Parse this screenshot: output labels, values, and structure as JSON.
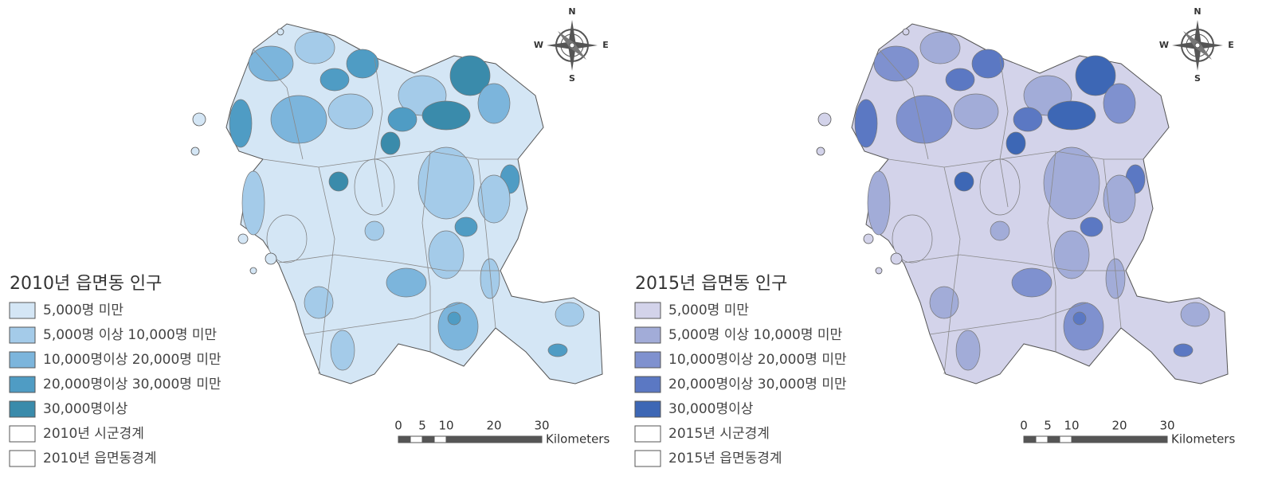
{
  "maps": [
    {
      "legend": {
        "title": "2010년 읍면동 인구",
        "items": [
          {
            "label": "5,000명 미만",
            "color": "#d4e6f5"
          },
          {
            "label": "5,000명 이상 10,000명 미만",
            "color": "#a4cbe9"
          },
          {
            "label": "10,000명이상 20,000명 미만",
            "color": "#7cb5dc"
          },
          {
            "label": "20,000명이상 30,000명 미만",
            "color": "#4f9cc4"
          },
          {
            "label": "30,000명이상",
            "color": "#3a8bab"
          },
          {
            "label": "2010년 시군경계",
            "color": "#ffffff"
          },
          {
            "label": "2010년 읍면동경계",
            "color": "#ffffff"
          }
        ]
      },
      "scale_bar": {
        "ticks": [
          0,
          5,
          10,
          20,
          30
        ],
        "unit": "Kilometers"
      },
      "compass": {
        "n": "N",
        "e": "E",
        "s": "S",
        "w": "W"
      }
    },
    {
      "legend": {
        "title": "2015년 읍면동 인구",
        "items": [
          {
            "label": "5,000명 미만",
            "color": "#d3d3ea"
          },
          {
            "label": "5,000명 이상 10,000명 미만",
            "color": "#a2acd8"
          },
          {
            "label": "10,000명이상 20,000명 미만",
            "color": "#7f91cf"
          },
          {
            "label": "20,000명이상 30,000명 미만",
            "color": "#5b78c3"
          },
          {
            "label": "30,000명이상",
            "color": "#3d67b5"
          },
          {
            "label": "2015년 시군경계",
            "color": "#ffffff"
          },
          {
            "label": "2015년 읍면동경계",
            "color": "#ffffff"
          }
        ]
      },
      "scale_bar": {
        "ticks": [
          0,
          5,
          10,
          20,
          30
        ],
        "unit": "Kilometers"
      },
      "compass": {
        "n": "N",
        "e": "E",
        "s": "S",
        "w": "W"
      }
    }
  ]
}
